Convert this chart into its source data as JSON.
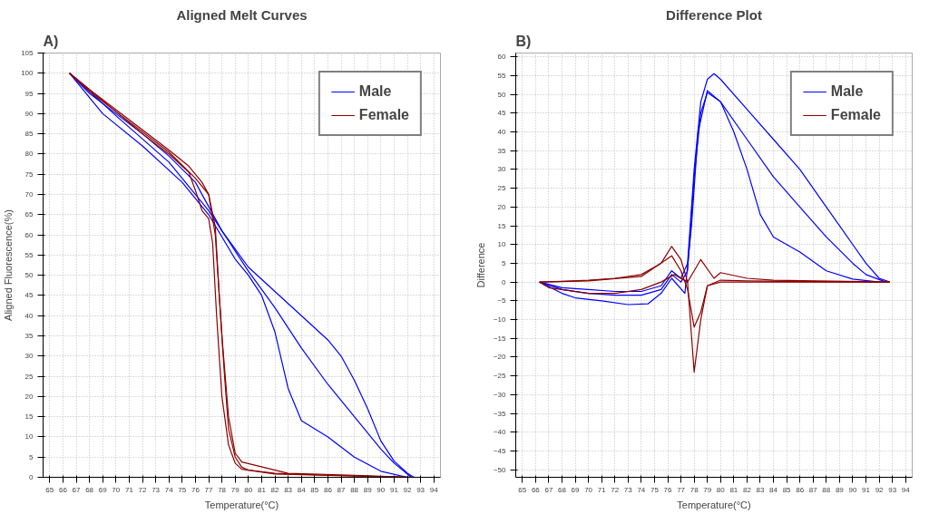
{
  "chart_data": [
    {
      "type": "line",
      "title": "Aligned Melt Curves",
      "xlabel": "Temperature(°C)",
      "ylabel": "Aligned Fluorescence(%)",
      "annotations": [
        "A)"
      ],
      "xlim": [
        64.5,
        94.5
      ],
      "ylim": [
        0,
        105
      ],
      "xticks": [
        65,
        66,
        67,
        68,
        69,
        70,
        71,
        72,
        73,
        74,
        75,
        76,
        77,
        78,
        79,
        80,
        81,
        82,
        83,
        84,
        85,
        86,
        87,
        88,
        89,
        90,
        91,
        92,
        93,
        94
      ],
      "yticks": [
        0,
        5,
        10,
        15,
        20,
        25,
        30,
        35,
        40,
        45,
        50,
        55,
        60,
        65,
        70,
        75,
        80,
        85,
        90,
        95,
        100,
        105
      ],
      "grid": true,
      "legend": "top right",
      "line_style": "solid",
      "marker": "none",
      "series": [
        {
          "name": "Male",
          "color": "#0000ff",
          "x": [
            66.5,
            68,
            70,
            72,
            74,
            76,
            77,
            78,
            80,
            82,
            84,
            86,
            87,
            88,
            89,
            90,
            91,
            92,
            92.5
          ],
          "values": [
            100,
            95,
            90,
            85,
            79.5,
            73,
            67,
            61,
            52,
            46,
            40,
            34,
            30,
            24,
            17,
            9,
            4,
            1,
            0
          ]
        },
        {
          "color": "#0000ff",
          "x": [
            66.5,
            70,
            74,
            77,
            79,
            80,
            82,
            84,
            86,
            88,
            90,
            91,
            92.3
          ],
          "values": [
            100,
            89.5,
            78,
            66,
            56,
            51,
            42,
            32,
            23,
            15,
            7,
            3.5,
            0
          ]
        },
        {
          "color": "#0000ff",
          "x": [
            66.5,
            69,
            72,
            75,
            77,
            79,
            80,
            81,
            82,
            83,
            84,
            86,
            88,
            90,
            92
          ],
          "values": [
            100,
            90,
            82,
            73,
            65,
            54,
            50,
            45,
            36,
            22,
            14,
            10,
            5,
            1.5,
            0
          ]
        },
        {
          "name": "Female",
          "color": "#8b0000",
          "x": [
            66.5,
            68,
            70,
            72,
            74,
            75.5,
            76.5,
            77,
            77.5,
            77.8,
            78.2,
            78.5,
            79,
            79.5,
            80,
            82,
            86,
            92.8
          ],
          "values": [
            100,
            96,
            91,
            86,
            81,
            77,
            73,
            70,
            62,
            45,
            25,
            12,
            5,
            2.5,
            1.8,
            1,
            0.5,
            0
          ]
        },
        {
          "color": "#8b0000",
          "x": [
            66.5,
            68,
            70,
            72,
            74,
            75.5,
            76,
            76.5,
            77,
            77.3,
            77.6,
            78,
            78.5,
            79,
            79.5,
            82,
            92
          ],
          "values": [
            100,
            95.5,
            90.5,
            85,
            80,
            75.5,
            71,
            66,
            64,
            58,
            40,
            20,
            8,
            3.5,
            2,
            0.8,
            0
          ]
        },
        {
          "color": "#8b0000",
          "x": [
            66.5,
            70,
            74,
            76,
            77,
            77.5,
            78,
            78.5,
            79,
            79.5,
            83,
            88,
            92.5
          ],
          "values": [
            100,
            90.5,
            80.5,
            74,
            70,
            60,
            35,
            15,
            6,
            3.8,
            1,
            0.5,
            0
          ]
        }
      ]
    },
    {
      "type": "line",
      "title": "Difference Plot",
      "xlabel": "Temperature(°C)",
      "ylabel": "Difference",
      "annotations": [
        "B)"
      ],
      "xlim": [
        64.5,
        94.5
      ],
      "ylim": [
        -52,
        61
      ],
      "xticks": [
        65,
        66,
        67,
        68,
        69,
        70,
        71,
        72,
        73,
        74,
        75,
        76,
        77,
        78,
        79,
        80,
        81,
        82,
        83,
        84,
        85,
        86,
        87,
        88,
        89,
        90,
        91,
        92,
        93,
        94
      ],
      "yticks": [
        -50,
        -45,
        -40,
        -35,
        -30,
        -25,
        -20,
        -15,
        -10,
        -5,
        0,
        5,
        10,
        15,
        20,
        25,
        30,
        35,
        40,
        45,
        50,
        55,
        60
      ],
      "grid": true,
      "legend": "top right",
      "line_style": "solid",
      "marker": "none",
      "series": [
        {
          "name": "Male",
          "color": "#0000ff",
          "x": [
            66.3,
            68,
            70,
            72,
            74,
            75.5,
            76.3,
            77,
            77.5,
            78,
            78.5,
            79,
            79.5,
            80,
            82,
            84,
            86,
            88,
            90,
            91,
            92,
            92.8
          ],
          "values": [
            0,
            -1.5,
            -2,
            -2.5,
            -2.5,
            -1,
            3,
            1,
            5,
            30,
            48,
            54,
            55.5,
            54,
            46,
            38,
            30,
            20,
            10,
            5,
            1,
            0
          ]
        },
        {
          "color": "#0000ff",
          "x": [
            66.3,
            68,
            70,
            72,
            74,
            75.5,
            76.3,
            77,
            77.5,
            78,
            78.5,
            79,
            80,
            82,
            84,
            86,
            88,
            90,
            91,
            92.5
          ],
          "values": [
            0,
            -2,
            -3,
            -3.5,
            -3.5,
            -2,
            2,
            0,
            3,
            28,
            45,
            50.5,
            48,
            38,
            28,
            20,
            12,
            5,
            2,
            0
          ]
        },
        {
          "color": "#0000ff",
          "x": [
            66.3,
            68,
            69,
            71,
            73,
            74.5,
            75.5,
            76.3,
            77.3,
            77.8,
            78.3,
            79,
            80,
            81,
            82,
            83,
            84,
            86,
            88,
            90,
            92
          ],
          "values": [
            0,
            -3,
            -4.2,
            -5,
            -6,
            -5.8,
            -3,
            1,
            -3,
            15,
            40,
            51,
            48,
            40,
            30,
            18,
            12,
            8,
            3,
            0.8,
            0
          ]
        },
        {
          "name": "Female",
          "color": "#8b0000",
          "x": [
            66.3,
            68,
            70,
            72,
            74,
            75.5,
            76.3,
            77,
            77.5,
            78,
            78.5,
            79,
            80,
            82,
            86,
            92.8
          ],
          "values": [
            0,
            0.2,
            0.5,
            1,
            2,
            5,
            9.5,
            6,
            0,
            -24,
            -10,
            -1,
            0.5,
            0.3,
            0.1,
            0
          ]
        },
        {
          "color": "#8b0000",
          "x": [
            66.3,
            70,
            74,
            76.3,
            77,
            77.5,
            78,
            78.5,
            79,
            80,
            92.8
          ],
          "values": [
            0,
            0.3,
            1.5,
            7,
            3,
            -2,
            -12,
            -8,
            -1,
            0,
            0
          ]
        },
        {
          "color": "#8b0000",
          "x": [
            66.3,
            67,
            70,
            72,
            74,
            75.5,
            76.5,
            77.5,
            78.5,
            79.5,
            80,
            82,
            84,
            92.8
          ],
          "values": [
            0,
            -1.5,
            -3,
            -3,
            -2,
            0,
            2,
            0,
            6,
            1,
            2.5,
            1,
            0.5,
            0
          ]
        }
      ]
    }
  ]
}
